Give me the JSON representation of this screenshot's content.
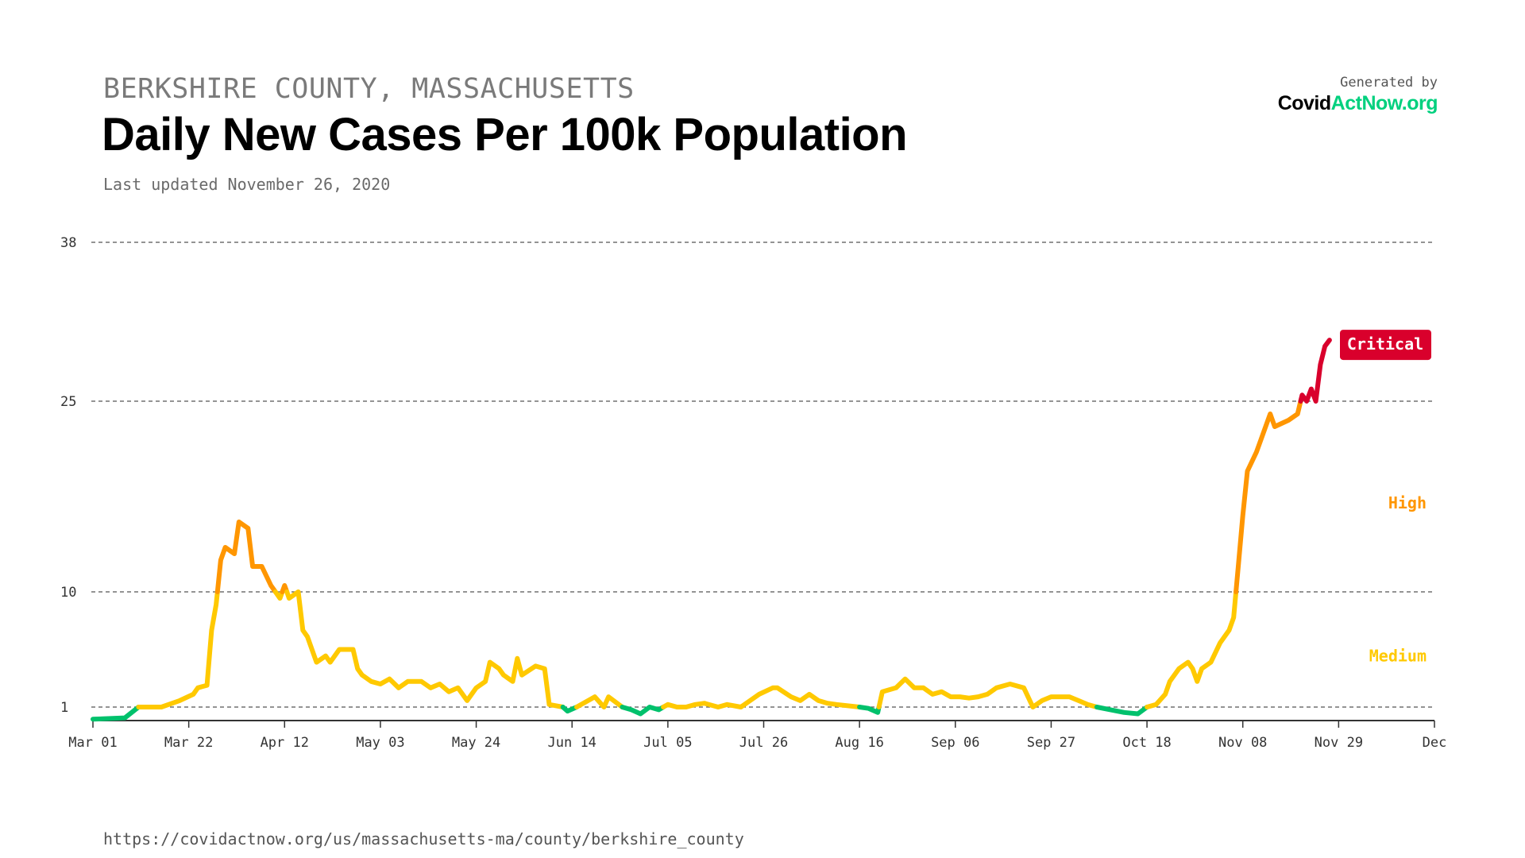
{
  "header": {
    "region": "BERKSHIRE COUNTY, MASSACHUSETTS",
    "title": "Daily New Cases Per 100k Population",
    "last_updated": "Last updated November 26, 2020"
  },
  "logo": {
    "generated_by": "Generated by",
    "brand_part1": "Covid",
    "brand_part2": "ActNow.org"
  },
  "footer": {
    "url": "https://covidactnow.org/us/massachusetts-ma/county/berkshire_county"
  },
  "colors": {
    "low": "#00c16c",
    "medium": "#ffc900",
    "high": "#ff9600",
    "critical": "#d9002c",
    "grid": "#555555",
    "axis": "#333333"
  },
  "chart_data": {
    "type": "line",
    "title": "Daily New Cases Per 100k Population",
    "xlabel": "",
    "ylabel": "",
    "x_ticks": [
      "Mar 01",
      "Mar 22",
      "Apr 12",
      "May 03",
      "May 24",
      "Jun 14",
      "Jul 05",
      "Jul 26",
      "Aug 16",
      "Sep 06",
      "Sep 27",
      "Oct 18",
      "Nov 08",
      "Nov 29",
      "Dec"
    ],
    "x_tick_days": [
      0,
      21,
      42,
      63,
      84,
      105,
      126,
      147,
      168,
      189,
      210,
      231,
      252,
      273,
      294
    ],
    "y_ticks": [
      {
        "value": 1,
        "label": "1"
      },
      {
        "value": 10,
        "label": "10"
      },
      {
        "value": 25,
        "label": "25"
      },
      {
        "value": 38,
        "label": "38"
      }
    ],
    "ylim": [
      0,
      38
    ],
    "xlim_days": [
      0,
      294
    ],
    "thresholds": [
      1,
      10,
      25
    ],
    "levels": [
      {
        "name": "Medium",
        "color": "#ffc900",
        "value": 5
      },
      {
        "name": "High",
        "color": "#ff9600",
        "value": 17
      },
      {
        "name": "Critical",
        "color": "#d9002c",
        "value": 30,
        "badge": true
      }
    ],
    "series": [
      {
        "name": "Daily new cases per 100k",
        "points": [
          [
            0,
            0.1
          ],
          [
            7,
            0.2
          ],
          [
            10,
            1.0
          ],
          [
            15,
            1.0
          ],
          [
            19,
            1.5
          ],
          [
            22,
            2.0
          ],
          [
            23,
            2.5
          ],
          [
            25,
            2.7
          ],
          [
            26,
            7.0
          ],
          [
            27,
            9.0
          ],
          [
            28,
            12.5
          ],
          [
            29,
            13.5
          ],
          [
            31,
            13.0
          ],
          [
            32,
            15.5
          ],
          [
            34,
            15.0
          ],
          [
            35,
            12.0
          ],
          [
            37,
            12.0
          ],
          [
            39,
            10.5
          ],
          [
            41,
            9.5
          ],
          [
            42,
            10.5
          ],
          [
            43,
            9.5
          ],
          [
            45,
            10.0
          ],
          [
            46,
            7.0
          ],
          [
            47,
            6.5
          ],
          [
            49,
            4.5
          ],
          [
            51,
            5.0
          ],
          [
            52,
            4.5
          ],
          [
            54,
            5.5
          ],
          [
            57,
            5.5
          ],
          [
            58,
            4.0
          ],
          [
            59,
            3.5
          ],
          [
            61,
            3.0
          ],
          [
            63,
            2.8
          ],
          [
            65,
            3.2
          ],
          [
            67,
            2.5
          ],
          [
            69,
            3.0
          ],
          [
            72,
            3.0
          ],
          [
            74,
            2.5
          ],
          [
            76,
            2.8
          ],
          [
            78,
            2.2
          ],
          [
            80,
            2.5
          ],
          [
            82,
            1.5
          ],
          [
            84,
            2.5
          ],
          [
            86,
            3.0
          ],
          [
            87,
            4.5
          ],
          [
            89,
            4.0
          ],
          [
            90,
            3.5
          ],
          [
            92,
            3.0
          ],
          [
            93,
            4.8
          ],
          [
            94,
            3.5
          ],
          [
            97,
            4.2
          ],
          [
            99,
            4.0
          ],
          [
            100,
            1.2
          ],
          [
            103,
            1.0
          ],
          [
            104,
            0.7
          ],
          [
            106,
            1.0
          ],
          [
            110,
            1.8
          ],
          [
            112,
            1.0
          ],
          [
            113,
            1.8
          ],
          [
            116,
            1.0
          ],
          [
            118,
            0.8
          ],
          [
            120,
            0.5
          ],
          [
            122,
            1.0
          ],
          [
            124,
            0.8
          ],
          [
            126,
            1.2
          ],
          [
            128,
            1.0
          ],
          [
            130,
            1.0
          ],
          [
            132,
            1.2
          ],
          [
            134,
            1.3
          ],
          [
            137,
            1.0
          ],
          [
            139,
            1.2
          ],
          [
            142,
            1.0
          ],
          [
            144,
            1.5
          ],
          [
            146,
            2.0
          ],
          [
            149,
            2.5
          ],
          [
            150,
            2.5
          ],
          [
            153,
            1.8
          ],
          [
            155,
            1.5
          ],
          [
            157,
            2.0
          ],
          [
            159,
            1.5
          ],
          [
            161,
            1.3
          ],
          [
            163,
            1.2
          ],
          [
            168,
            1.0
          ],
          [
            170,
            0.9
          ],
          [
            172,
            0.6
          ],
          [
            173,
            2.2
          ],
          [
            176,
            2.5
          ],
          [
            178,
            3.2
          ],
          [
            180,
            2.5
          ],
          [
            182,
            2.5
          ],
          [
            184,
            2.0
          ],
          [
            186,
            2.2
          ],
          [
            188,
            1.8
          ],
          [
            190,
            1.8
          ],
          [
            192,
            1.7
          ],
          [
            194,
            1.8
          ],
          [
            196,
            2.0
          ],
          [
            198,
            2.5
          ],
          [
            201,
            2.8
          ],
          [
            204,
            2.5
          ],
          [
            206,
            1.0
          ],
          [
            208,
            1.5
          ],
          [
            210,
            1.8
          ],
          [
            214,
            1.8
          ],
          [
            216,
            1.5
          ],
          [
            218,
            1.2
          ],
          [
            220,
            1.0
          ],
          [
            223,
            0.8
          ],
          [
            226,
            0.6
          ],
          [
            229,
            0.5
          ],
          [
            231,
            1.0
          ],
          [
            233,
            1.2
          ],
          [
            235,
            2.0
          ],
          [
            236,
            3.0
          ],
          [
            238,
            4.0
          ],
          [
            240,
            4.5
          ],
          [
            241,
            4.0
          ],
          [
            242,
            3.0
          ],
          [
            243,
            4.0
          ],
          [
            245,
            4.5
          ],
          [
            247,
            6.0
          ],
          [
            249,
            7.0
          ],
          [
            250,
            8.0
          ],
          [
            251,
            12.0
          ],
          [
            252,
            16.0
          ],
          [
            253,
            19.5
          ],
          [
            255,
            21.0
          ],
          [
            256,
            22.0
          ],
          [
            258,
            24.0
          ],
          [
            259,
            23.0
          ],
          [
            262,
            23.5
          ],
          [
            264,
            24.0
          ],
          [
            265,
            25.5
          ],
          [
            266,
            25.0
          ],
          [
            267,
            26.0
          ],
          [
            268,
            25.0
          ],
          [
            269,
            28.0
          ],
          [
            270,
            29.5
          ],
          [
            271,
            30.0
          ]
        ]
      }
    ]
  }
}
